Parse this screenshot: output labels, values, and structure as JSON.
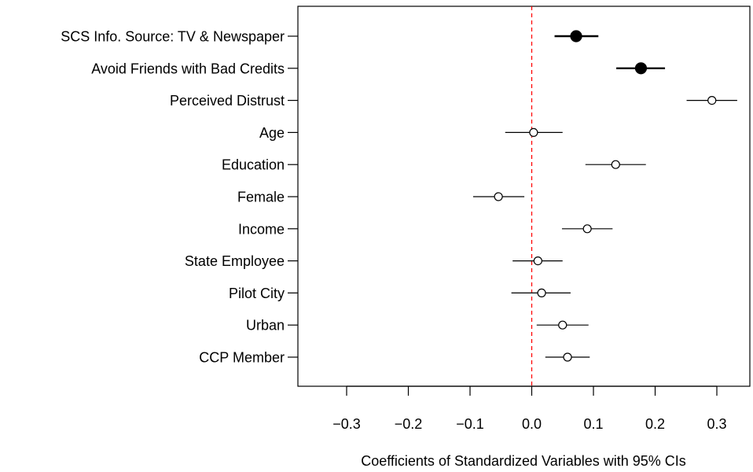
{
  "chart_data": {
    "type": "scatter",
    "subtype": "coefficient-plot",
    "xlabel": "Coefficients of Standardized Variables with 95% CIs",
    "xlim": [
      -0.35,
      0.35
    ],
    "xticks": [
      -0.3,
      -0.2,
      -0.1,
      0.0,
      0.1,
      0.2,
      0.3
    ],
    "xtick_labels": [
      "−0.3",
      "−0.2",
      "−0.1",
      "0.0",
      "0.1",
      "0.2",
      "0.3"
    ],
    "reference_line": {
      "x": 0.0,
      "style": "dashed",
      "color": "#ff0000"
    },
    "grid": false,
    "legend": "none",
    "colors": {
      "point": "#000000",
      "reference": "#ff0000"
    },
    "items": [
      {
        "label": "SCS Info. Source: TV & Newspaper",
        "estimate": 0.072,
        "lower": 0.037,
        "upper": 0.108,
        "filled": true
      },
      {
        "label": "Avoid Friends with Bad Credits",
        "estimate": 0.177,
        "lower": 0.137,
        "upper": 0.216,
        "filled": true
      },
      {
        "label": "Perceived Distrust",
        "estimate": 0.292,
        "lower": 0.251,
        "upper": 0.333,
        "filled": false
      },
      {
        "label": "Age",
        "estimate": 0.003,
        "lower": -0.043,
        "upper": 0.05,
        "filled": false
      },
      {
        "label": "Education",
        "estimate": 0.136,
        "lower": 0.087,
        "upper": 0.185,
        "filled": false
      },
      {
        "label": "Female",
        "estimate": -0.054,
        "lower": -0.095,
        "upper": -0.012,
        "filled": false
      },
      {
        "label": "Income",
        "estimate": 0.09,
        "lower": 0.049,
        "upper": 0.131,
        "filled": false
      },
      {
        "label": "State Employee",
        "estimate": 0.01,
        "lower": -0.031,
        "upper": 0.05,
        "filled": false
      },
      {
        "label": "Pilot City",
        "estimate": 0.016,
        "lower": -0.033,
        "upper": 0.063,
        "filled": false
      },
      {
        "label": "Urban",
        "estimate": 0.05,
        "lower": 0.008,
        "upper": 0.092,
        "filled": false
      },
      {
        "label": "CCP Member",
        "estimate": 0.058,
        "lower": 0.022,
        "upper": 0.094,
        "filled": false
      }
    ]
  }
}
